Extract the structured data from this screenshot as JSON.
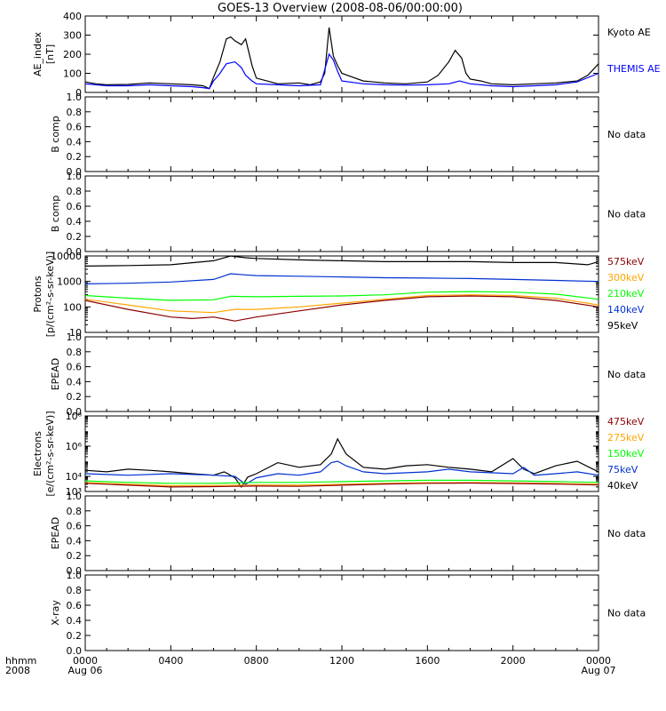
{
  "title": "GOES-13 Overview (2008-08-06/00:00:00)",
  "colors": {
    "black": "#000000",
    "blue": "#0000ff",
    "darkred": "#8b0000",
    "orange": "#ffa500",
    "green": "#00ff00",
    "navy": "#0030d0"
  },
  "time_axis": {
    "row_labels": [
      "hhmm",
      "2008"
    ],
    "ticks": [
      {
        "t": 0,
        "top": "0000",
        "bottom": "Aug 06"
      },
      {
        "t": 4,
        "top": "0400",
        "bottom": ""
      },
      {
        "t": 8,
        "top": "0800",
        "bottom": ""
      },
      {
        "t": 12,
        "top": "1200",
        "bottom": ""
      },
      {
        "t": 16,
        "top": "1600",
        "bottom": ""
      },
      {
        "t": 20,
        "top": "2000",
        "bottom": ""
      },
      {
        "t": 24,
        "top": "0000",
        "bottom": "Aug 07"
      }
    ],
    "range_hours": [
      0,
      24
    ]
  },
  "chart_data": [
    {
      "type": "line",
      "ylabel_lines": [
        "AE_index",
        "[nT]"
      ],
      "scale": "linear",
      "ylim": [
        0,
        400
      ],
      "ticks": [
        {
          "v": 0,
          "label": "0"
        },
        {
          "v": 100,
          "label": "100"
        },
        {
          "v": 200,
          "label": "200"
        },
        {
          "v": 300,
          "label": "300"
        },
        {
          "v": 400,
          "label": "400"
        }
      ],
      "legend": [
        {
          "text": "Kyoto AE",
          "color": "#000000"
        },
        {
          "text": "THEMIS AE",
          "color": "#0000ff"
        }
      ],
      "series": [
        {
          "name": "Kyoto AE",
          "color": "#000000",
          "x": [
            0,
            0.5,
            1,
            2,
            3,
            4,
            5,
            5.5,
            5.8,
            6.0,
            6.3,
            6.6,
            6.8,
            7.0,
            7.3,
            7.5,
            7.8,
            8.0,
            8.5,
            9,
            10,
            10.5,
            11,
            11.2,
            11.4,
            11.6,
            11.8,
            12.0,
            12.5,
            13,
            13.5,
            14,
            15,
            16,
            16.5,
            17,
            17.3,
            17.6,
            17.8,
            18,
            18.5,
            19,
            20,
            21,
            22,
            23,
            23.5,
            24
          ],
          "y": [
            55,
            45,
            40,
            42,
            50,
            45,
            40,
            35,
            20,
            80,
            160,
            280,
            290,
            270,
            250,
            280,
            140,
            75,
            60,
            45,
            50,
            40,
            55,
            100,
            340,
            190,
            140,
            100,
            80,
            60,
            55,
            50,
            45,
            55,
            90,
            160,
            220,
            180,
            100,
            70,
            60,
            45,
            40,
            45,
            50,
            60,
            90,
            150
          ]
        },
        {
          "name": "THEMIS AE",
          "color": "#0000ff",
          "x": [
            0,
            1,
            2,
            3,
            4,
            5,
            5.5,
            5.8,
            6.0,
            6.3,
            6.6,
            7.0,
            7.3,
            7.5,
            7.8,
            8.0,
            9,
            10,
            11,
            11.4,
            11.6,
            11.8,
            12,
            13,
            14,
            15,
            16,
            17,
            17.5,
            18,
            19,
            20,
            21,
            22,
            23,
            24
          ],
          "y": [
            45,
            35,
            35,
            40,
            35,
            30,
            25,
            20,
            60,
            100,
            150,
            160,
            130,
            90,
            60,
            45,
            40,
            35,
            40,
            200,
            170,
            110,
            60,
            45,
            40,
            38,
            40,
            45,
            60,
            45,
            35,
            30,
            35,
            40,
            55,
            100
          ]
        }
      ]
    },
    {
      "type": "line",
      "ylabel_lines": [
        "B comp"
      ],
      "scale": "linear",
      "ylim": [
        0,
        1
      ],
      "ticks": [
        {
          "v": 0,
          "label": "0.0"
        },
        {
          "v": 0.2,
          "label": "0.2"
        },
        {
          "v": 0.4,
          "label": "0.4"
        },
        {
          "v": 0.6,
          "label": "0.6"
        },
        {
          "v": 0.8,
          "label": "0.8"
        },
        {
          "v": 1.0,
          "label": "1.0"
        }
      ],
      "legend": [],
      "message": "No data",
      "series": []
    },
    {
      "type": "line",
      "ylabel_lines": [
        "B comp"
      ],
      "scale": "linear",
      "ylim": [
        0,
        1
      ],
      "ticks": [
        {
          "v": 0,
          "label": "0.0"
        },
        {
          "v": 0.2,
          "label": "0.2"
        },
        {
          "v": 0.4,
          "label": "0.4"
        },
        {
          "v": 0.6,
          "label": "0.6"
        },
        {
          "v": 0.8,
          "label": "0.8"
        },
        {
          "v": 1.0,
          "label": "1.0"
        }
      ],
      "legend": [],
      "message": "No data",
      "series": []
    },
    {
      "type": "line",
      "ylabel_lines": [
        "Protons",
        "[p/(cm²-s-sr-keV)]"
      ],
      "scale": "log",
      "ylim": [
        10,
        10000
      ],
      "ticks": [
        {
          "v": 10,
          "label": "10"
        },
        {
          "v": 100,
          "label": "100"
        },
        {
          "v": 1000,
          "label": "1000"
        },
        {
          "v": 10000,
          "label": "10000"
        }
      ],
      "legend": [
        {
          "text": "575keV",
          "color": "#8b0000"
        },
        {
          "text": "300keV",
          "color": "#ffa500"
        },
        {
          "text": "210keV",
          "color": "#00ff00"
        },
        {
          "text": "140keV",
          "color": "#0030d0"
        },
        {
          "text": "95keV",
          "color": "#000000"
        }
      ],
      "series": [
        {
          "name": "95keV",
          "color": "#000000",
          "x": [
            0,
            2,
            4,
            6,
            6.8,
            7.5,
            8,
            10,
            12,
            14,
            16,
            18,
            20,
            22,
            23.5,
            24
          ],
          "y": [
            4000,
            4200,
            4500,
            6500,
            10000,
            8500,
            8000,
            7000,
            6500,
            6000,
            6000,
            6000,
            5500,
            5500,
            4500,
            6000
          ]
        },
        {
          "name": "140keV",
          "color": "#0030d0",
          "x": [
            0,
            2,
            4,
            6,
            6.8,
            7.5,
            8,
            10,
            12,
            14,
            16,
            18,
            20,
            22,
            24
          ],
          "y": [
            800,
            850,
            950,
            1200,
            2000,
            1800,
            1700,
            1600,
            1500,
            1400,
            1350,
            1300,
            1200,
            1100,
            1000
          ]
        },
        {
          "name": "210keV",
          "color": "#00ff00",
          "x": [
            0,
            2,
            4,
            6,
            6.8,
            8,
            10,
            12,
            14,
            16,
            18,
            20,
            22,
            24
          ],
          "y": [
            280,
            220,
            180,
            190,
            260,
            250,
            260,
            270,
            300,
            380,
            400,
            380,
            320,
            200
          ]
        },
        {
          "name": "300keV",
          "color": "#ffa500",
          "x": [
            0,
            2,
            4,
            6,
            7,
            8,
            10,
            12,
            14,
            16,
            18,
            20,
            22,
            24
          ],
          "y": [
            200,
            120,
            70,
            60,
            80,
            80,
            100,
            140,
            200,
            280,
            300,
            280,
            220,
            120
          ]
        },
        {
          "name": "575keV",
          "color": "#8b0000",
          "x": [
            0,
            2,
            4,
            5,
            6,
            7,
            8,
            10,
            12,
            14,
            16,
            18,
            20,
            22,
            24
          ],
          "y": [
            180,
            80,
            40,
            35,
            40,
            28,
            40,
            70,
            120,
            180,
            250,
            270,
            250,
            180,
            100
          ]
        }
      ]
    },
    {
      "type": "line",
      "ylabel_lines": [
        "EPEAD"
      ],
      "scale": "linear",
      "ylim": [
        0,
        1
      ],
      "ticks": [
        {
          "v": 0,
          "label": "0.0"
        },
        {
          "v": 0.2,
          "label": "0.2"
        },
        {
          "v": 0.4,
          "label": "0.4"
        },
        {
          "v": 0.6,
          "label": "0.6"
        },
        {
          "v": 0.8,
          "label": "0.8"
        },
        {
          "v": 1.0,
          "label": "1.0"
        }
      ],
      "legend": [],
      "message": "No data",
      "series": []
    },
    {
      "type": "line",
      "ylabel_lines": [
        "Electrons",
        "[e/(cm²-s-sr-keV)]"
      ],
      "scale": "log",
      "ylim": [
        1000,
        100000000
      ],
      "ticks": [
        {
          "v": 1000,
          "label": "10³"
        },
        {
          "v": 10000,
          "label": "10⁴"
        },
        {
          "v": 1000000,
          "label": "10⁶"
        },
        {
          "v": 100000000,
          "label": "10⁸"
        }
      ],
      "legend": [
        {
          "text": "475keV",
          "color": "#8b0000"
        },
        {
          "text": "275keV",
          "color": "#ffa500"
        },
        {
          "text": "150keV",
          "color": "#00ff00"
        },
        {
          "text": "75keV",
          "color": "#0030d0"
        },
        {
          "text": "40keV",
          "color": "#000000"
        }
      ],
      "series": [
        {
          "name": "40keV",
          "color": "#000000",
          "x": [
            0,
            1,
            2,
            3,
            4,
            5,
            6,
            6.5,
            7.0,
            7.3,
            7.6,
            8,
            9,
            10,
            11,
            11.5,
            11.8,
            12.2,
            13,
            14,
            15,
            16,
            17,
            18,
            19,
            20,
            20.5,
            21,
            22,
            23,
            24
          ],
          "y": [
            25000,
            20000,
            30000,
            25000,
            20000,
            15000,
            12000,
            20000,
            8000,
            2000,
            9000,
            15000,
            80000,
            40000,
            60000,
            300000,
            3000000,
            300000,
            40000,
            30000,
            50000,
            60000,
            40000,
            30000,
            20000,
            150000,
            30000,
            15000,
            50000,
            100000,
            20000
          ]
        },
        {
          "name": "75keV",
          "color": "#0030d0",
          "x": [
            0,
            2,
            4,
            6,
            7,
            7.5,
            8,
            9,
            10,
            11,
            11.5,
            11.8,
            12.2,
            13,
            14,
            16,
            17,
            18,
            20,
            20.5,
            21,
            22,
            23,
            24
          ],
          "y": [
            15000,
            12000,
            15000,
            12000,
            10000,
            3000,
            8000,
            15000,
            12000,
            20000,
            80000,
            100000,
            50000,
            20000,
            15000,
            20000,
            30000,
            20000,
            15000,
            40000,
            12000,
            15000,
            20000,
            12000
          ]
        },
        {
          "name": "150keV",
          "color": "#00ff00",
          "x": [
            0,
            2,
            4,
            6,
            8,
            10,
            12,
            14,
            16,
            18,
            20,
            22,
            24
          ],
          "y": [
            5000,
            4000,
            3500,
            3500,
            4000,
            4000,
            4500,
            5000,
            5500,
            5500,
            5000,
            4500,
            4000
          ]
        },
        {
          "name": "275keV",
          "color": "#ffa500",
          "x": [
            0,
            2,
            4,
            6,
            8,
            10,
            12,
            14,
            16,
            18,
            20,
            22,
            24
          ],
          "y": [
            3800,
            3000,
            2400,
            2500,
            2700,
            2600,
            3000,
            3500,
            3800,
            3900,
            3700,
            3400,
            3000
          ]
        },
        {
          "name": "475keV",
          "color": "#8b0000",
          "x": [
            0,
            2,
            4,
            6,
            8,
            10,
            12,
            14,
            16,
            18,
            20,
            22,
            24
          ],
          "y": [
            3500,
            2600,
            2000,
            2100,
            2300,
            2200,
            2600,
            3100,
            3500,
            3600,
            3400,
            3100,
            2700
          ]
        }
      ]
    },
    {
      "type": "line",
      "ylabel_lines": [
        "EPEAD"
      ],
      "scale": "linear",
      "ylim": [
        0,
        1
      ],
      "ticks": [
        {
          "v": 0,
          "label": "0.0"
        },
        {
          "v": 0.2,
          "label": "0.2"
        },
        {
          "v": 0.4,
          "label": "0.4"
        },
        {
          "v": 0.6,
          "label": "0.6"
        },
        {
          "v": 0.8,
          "label": "0.8"
        },
        {
          "v": 1.0,
          "label": "1.0"
        }
      ],
      "legend": [],
      "message": "No data",
      "series": []
    },
    {
      "type": "line",
      "ylabel_lines": [
        "X-ray"
      ],
      "scale": "linear",
      "ylim": [
        0,
        1
      ],
      "ticks": [
        {
          "v": 0,
          "label": "0.0"
        },
        {
          "v": 0.2,
          "label": "0.2"
        },
        {
          "v": 0.4,
          "label": "0.4"
        },
        {
          "v": 0.6,
          "label": "0.6"
        },
        {
          "v": 0.8,
          "label": "0.8"
        },
        {
          "v": 1.0,
          "label": "1.0"
        }
      ],
      "legend": [],
      "message": "No data",
      "series": []
    }
  ]
}
